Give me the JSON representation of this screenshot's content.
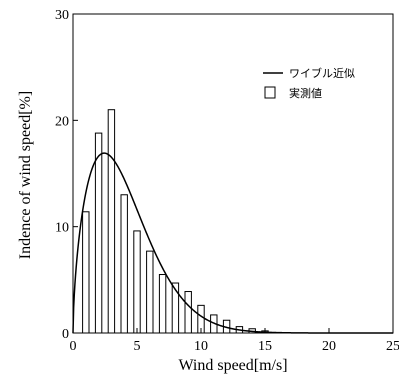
{
  "chart_data": {
    "type": "bar",
    "xlabel": "Wind speed[m/s]",
    "ylabel": "Indence of wind speed[%]",
    "xlim": [
      0,
      25
    ],
    "ylim": [
      0,
      30
    ],
    "xticks": [
      0,
      5,
      10,
      15,
      20,
      25
    ],
    "yticks": [
      0,
      10,
      20,
      30
    ],
    "grid": false,
    "legend_position": "top-right",
    "bars": {
      "name": "実測値",
      "x": [
        1,
        2,
        3,
        4,
        5,
        6,
        7,
        8,
        9,
        10,
        11,
        12,
        13,
        14,
        15
      ],
      "values": [
        11.4,
        18.8,
        21.0,
        13.0,
        9.6,
        7.7,
        5.5,
        4.7,
        3.9,
        2.6,
        1.7,
        1.2,
        0.6,
        0.4,
        0.2
      ]
    },
    "curve": {
      "name": "ワイブル近似",
      "distribution": "weibull",
      "shape_k": 1.6,
      "scale_c": 4.5
    }
  }
}
